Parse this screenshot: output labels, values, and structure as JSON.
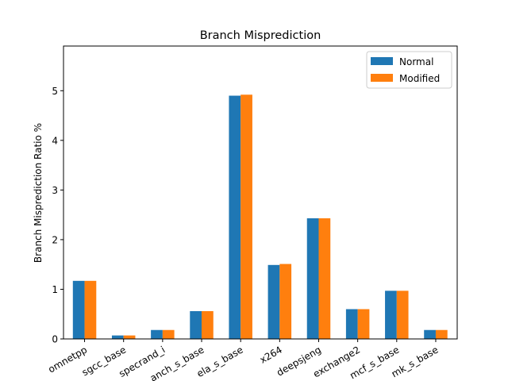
{
  "chart_data": {
    "type": "bar",
    "title": "Branch Misprediction",
    "xlabel": "",
    "ylabel": "Branch Misprediction Ratio %",
    "ylim": [
      0,
      5.9
    ],
    "yticks": [
      "0",
      "1",
      "2",
      "3",
      "4",
      "5"
    ],
    "categories": [
      "omnetpp",
      "sgcc_base",
      "specrand_i",
      "anch_s_base",
      "ela_s_base",
      "x264",
      "deepsjeng",
      "exchange2",
      "mcf_s_base",
      "mk_s_base"
    ],
    "series": [
      {
        "name": "Normal",
        "color": "#1f77b4",
        "values": [
          1.17,
          0.07,
          0.18,
          0.56,
          4.9,
          1.49,
          2.43,
          0.6,
          0.97,
          0.18
        ]
      },
      {
        "name": "Modified",
        "color": "#ff7f0e",
        "values": [
          1.17,
          0.07,
          0.18,
          0.56,
          4.92,
          1.51,
          2.43,
          0.6,
          0.97,
          0.18
        ]
      }
    ],
    "legend_position": "top-right",
    "grid": false
  }
}
